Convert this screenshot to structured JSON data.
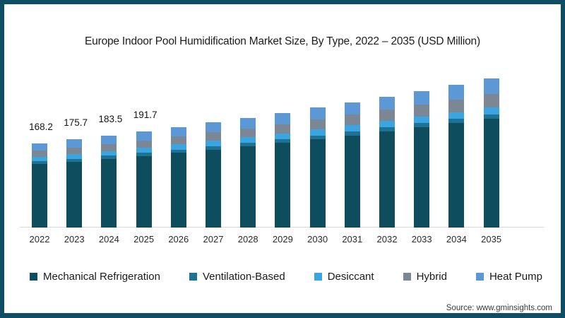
{
  "page": {
    "frame_color": "#0e4d63",
    "background": "#ffffff",
    "source_label": "Source: www.gminsights.com"
  },
  "chart_data": {
    "type": "bar",
    "stacked": true,
    "title": "Europe Indoor Pool Humidification Market Size, By Type, 2022 – 2035 (USD Million)",
    "unit": "USD Million",
    "categories": [
      "2022",
      "2023",
      "2024",
      "2025",
      "2026",
      "2027",
      "2028",
      "2029",
      "2030",
      "2031",
      "2032",
      "2033",
      "2034",
      "2035"
    ],
    "series": [
      {
        "name": "Mechanical Refrigeration",
        "color": "#0e4d5e",
        "values": [
          126.2,
          131.5,
          137.1,
          142.9,
          149.0,
          155.4,
          162.0,
          168.9,
          176.2,
          183.7,
          191.5,
          199.7,
          208.2,
          217.1
        ]
      },
      {
        "name": "Ventilation-Based",
        "color": "#1e7293",
        "values": [
          5.6,
          5.7,
          5.9,
          6.2,
          6.4,
          6.6,
          6.8,
          7.0,
          7.3,
          7.5,
          7.8,
          8.1,
          8.3,
          8.6
        ]
      },
      {
        "name": "Desiccant",
        "color": "#3aa5e1",
        "values": [
          8.7,
          9.1,
          9.4,
          9.8,
          10.2,
          10.6,
          11.0,
          11.4,
          11.8,
          12.3,
          12.8,
          13.2,
          13.7,
          14.3
        ]
      },
      {
        "name": "Hybrid",
        "color": "#7b8795",
        "values": [
          12.6,
          13.4,
          14.2,
          15.0,
          15.9,
          16.9,
          17.9,
          19.0,
          20.1,
          21.3,
          22.6,
          23.9,
          25.3,
          26.8
        ]
      },
      {
        "name": "Heat Pump",
        "color": "#5c98d6",
        "values": [
          15.1,
          16.0,
          16.9,
          17.8,
          18.8,
          19.9,
          21.0,
          22.2,
          23.4,
          24.7,
          26.1,
          27.5,
          29.0,
          30.6
        ]
      }
    ],
    "totals": [
      168.2,
      175.7,
      183.5,
      191.7,
      200.3,
      209.3,
      218.7,
      228.5,
      238.8,
      249.5,
      260.7,
      272.4,
      284.6,
      297.4
    ],
    "value_labels": [
      "168.2",
      "175.7",
      "183.5",
      "191.7",
      "",
      "",
      "",
      "",
      "",
      "",
      "",
      "",
      "",
      ""
    ],
    "legend_position": "bottom",
    "grid": false,
    "axis_color": "#d8d8d8"
  }
}
